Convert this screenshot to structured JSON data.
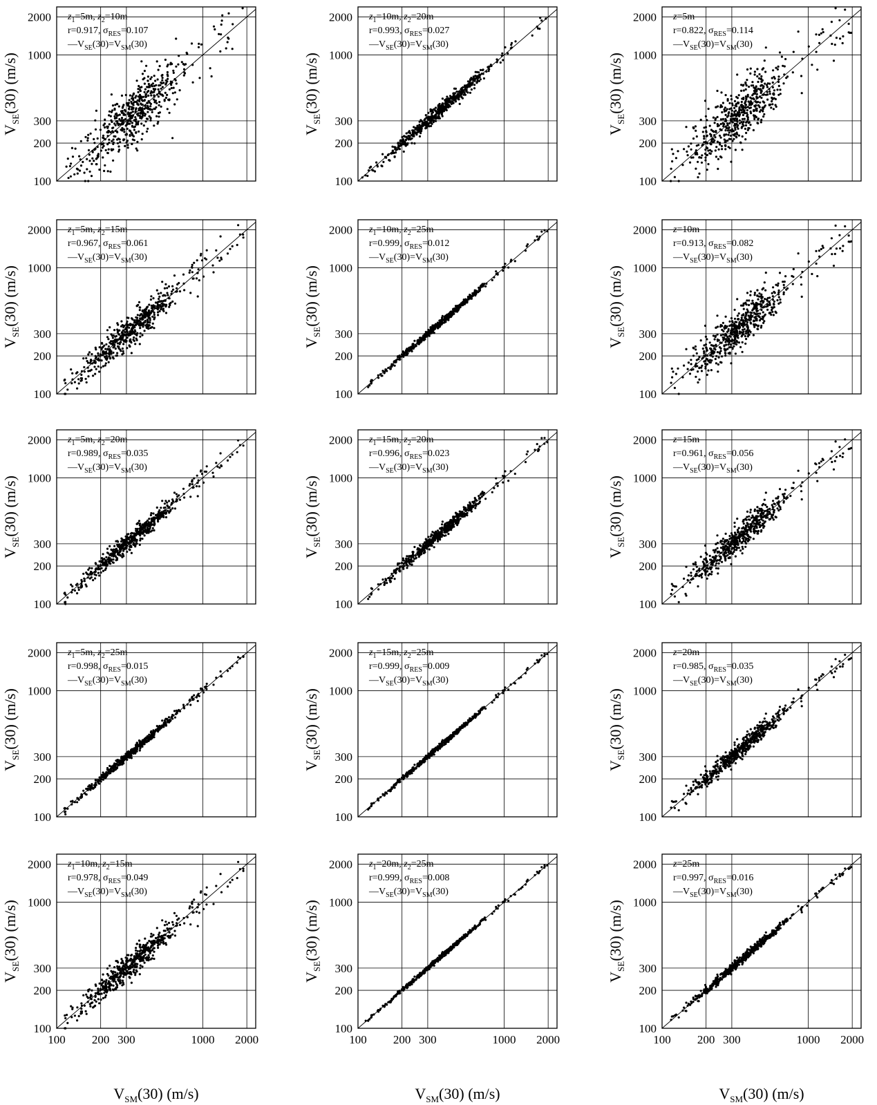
{
  "figure": {
    "ylabel_main": "V",
    "ylabel_sub": "SE",
    "ylabel_rest": "(30) (m/s)",
    "xlabel_main": "V",
    "xlabel_sub": "SM",
    "xlabel_rest": "(30) (m/s)",
    "legend_main": "—V",
    "legend_sub1": "SE",
    "legend_mid": "(30)=V",
    "legend_sub2": "SM",
    "legend_end": "(30)",
    "sigma_symbol": "σ",
    "sigma_sub": "RES"
  },
  "chart_data": [
    {
      "type": "scatter",
      "row": 0,
      "col": 0,
      "label_kind": "pair",
      "z1": "5",
      "z2": "10",
      "r": "0.917",
      "sigma": "0.107",
      "spread": 0.107,
      "xscale": "log",
      "yscale": "log",
      "xlim": [
        100,
        2300
      ],
      "ylim": [
        100,
        2400
      ],
      "xticks": [
        100,
        200,
        300,
        1000,
        2000
      ],
      "yticks": [
        100,
        200,
        300,
        1000,
        2000
      ],
      "grid": true,
      "reference_line": "y=x"
    },
    {
      "type": "scatter",
      "row": 0,
      "col": 1,
      "label_kind": "pair",
      "z1": "10",
      "z2": "20",
      "r": "0.993",
      "sigma": "0.027",
      "spread": 0.027,
      "xscale": "log",
      "yscale": "log",
      "xlim": [
        100,
        2300
      ],
      "ylim": [
        100,
        2400
      ],
      "xticks": [
        100,
        200,
        300,
        1000,
        2000
      ],
      "yticks": [
        100,
        200,
        300,
        1000,
        2000
      ],
      "grid": true,
      "reference_line": "y=x"
    },
    {
      "type": "scatter",
      "row": 0,
      "col": 2,
      "label_kind": "single",
      "z": "5",
      "r": "0.822",
      "sigma": "0.114",
      "spread": 0.114,
      "xscale": "log",
      "yscale": "log",
      "xlim": [
        100,
        2300
      ],
      "ylim": [
        100,
        2400
      ],
      "xticks": [
        100,
        200,
        300,
        1000,
        2000
      ],
      "yticks": [
        100,
        200,
        300,
        1000,
        2000
      ],
      "grid": true,
      "reference_line": "y=x"
    },
    {
      "type": "scatter",
      "row": 1,
      "col": 0,
      "label_kind": "pair",
      "z1": "5",
      "z2": "15",
      "r": "0.967",
      "sigma": "0.061",
      "spread": 0.061,
      "xscale": "log",
      "yscale": "log",
      "xlim": [
        100,
        2300
      ],
      "ylim": [
        100,
        2400
      ],
      "xticks": [
        100,
        200,
        300,
        1000,
        2000
      ],
      "yticks": [
        100,
        200,
        300,
        1000,
        2000
      ],
      "grid": true,
      "reference_line": "y=x"
    },
    {
      "type": "scatter",
      "row": 1,
      "col": 1,
      "label_kind": "pair",
      "z1": "10",
      "z2": "25",
      "r": "0.999",
      "sigma": "0.012",
      "spread": 0.012,
      "xscale": "log",
      "yscale": "log",
      "xlim": [
        100,
        2300
      ],
      "ylim": [
        100,
        2400
      ],
      "xticks": [
        100,
        200,
        300,
        1000,
        2000
      ],
      "yticks": [
        100,
        200,
        300,
        1000,
        2000
      ],
      "grid": true,
      "reference_line": "y=x"
    },
    {
      "type": "scatter",
      "row": 1,
      "col": 2,
      "label_kind": "single",
      "z": "10",
      "r": "0.913",
      "sigma": "0.082",
      "spread": 0.082,
      "xscale": "log",
      "yscale": "log",
      "xlim": [
        100,
        2300
      ],
      "ylim": [
        100,
        2400
      ],
      "xticks": [
        100,
        200,
        300,
        1000,
        2000
      ],
      "yticks": [
        100,
        200,
        300,
        1000,
        2000
      ],
      "grid": true,
      "reference_line": "y=x"
    },
    {
      "type": "scatter",
      "row": 2,
      "col": 0,
      "label_kind": "pair",
      "z1": "5",
      "z2": "20",
      "r": "0.989",
      "sigma": "0.035",
      "spread": 0.035,
      "xscale": "log",
      "yscale": "log",
      "xlim": [
        100,
        2300
      ],
      "ylim": [
        100,
        2400
      ],
      "xticks": [
        100,
        200,
        300,
        1000,
        2000
      ],
      "yticks": [
        100,
        200,
        300,
        1000,
        2000
      ],
      "grid": true,
      "reference_line": "y=x"
    },
    {
      "type": "scatter",
      "row": 2,
      "col": 1,
      "label_kind": "pair",
      "z1": "15",
      "z2": "20",
      "r": "0.996",
      "sigma": "0.023",
      "spread": 0.023,
      "xscale": "log",
      "yscale": "log",
      "xlim": [
        100,
        2300
      ],
      "ylim": [
        100,
        2400
      ],
      "xticks": [
        100,
        200,
        300,
        1000,
        2000
      ],
      "yticks": [
        100,
        200,
        300,
        1000,
        2000
      ],
      "grid": true,
      "reference_line": "y=x"
    },
    {
      "type": "scatter",
      "row": 2,
      "col": 2,
      "label_kind": "single",
      "z": "15",
      "r": "0.961",
      "sigma": "0.056",
      "spread": 0.056,
      "xscale": "log",
      "yscale": "log",
      "xlim": [
        100,
        2300
      ],
      "ylim": [
        100,
        2400
      ],
      "xticks": [
        100,
        200,
        300,
        1000,
        2000
      ],
      "yticks": [
        100,
        200,
        300,
        1000,
        2000
      ],
      "grid": true,
      "reference_line": "y=x"
    },
    {
      "type": "scatter",
      "row": 3,
      "col": 0,
      "label_kind": "pair",
      "z1": "5",
      "z2": "25",
      "r": "0.998",
      "sigma": "0.015",
      "spread": 0.015,
      "xscale": "log",
      "yscale": "log",
      "xlim": [
        100,
        2300
      ],
      "ylim": [
        100,
        2400
      ],
      "xticks": [
        100,
        200,
        300,
        1000,
        2000
      ],
      "yticks": [
        100,
        200,
        300,
        1000,
        2000
      ],
      "grid": true,
      "reference_line": "y=x"
    },
    {
      "type": "scatter",
      "row": 3,
      "col": 1,
      "label_kind": "pair",
      "z1": "15",
      "z2": "25",
      "r": "0.999",
      "sigma": "0.009",
      "spread": 0.009,
      "xscale": "log",
      "yscale": "log",
      "xlim": [
        100,
        2300
      ],
      "ylim": [
        100,
        2400
      ],
      "xticks": [
        100,
        200,
        300,
        1000,
        2000
      ],
      "yticks": [
        100,
        200,
        300,
        1000,
        2000
      ],
      "grid": true,
      "reference_line": "y=x"
    },
    {
      "type": "scatter",
      "row": 3,
      "col": 2,
      "label_kind": "single",
      "z": "20",
      "r": "0.985",
      "sigma": "0.035",
      "spread": 0.035,
      "xscale": "log",
      "yscale": "log",
      "xlim": [
        100,
        2300
      ],
      "ylim": [
        100,
        2400
      ],
      "xticks": [
        100,
        200,
        300,
        1000,
        2000
      ],
      "yticks": [
        100,
        200,
        300,
        1000,
        2000
      ],
      "grid": true,
      "reference_line": "y=x"
    },
    {
      "type": "scatter",
      "row": 4,
      "col": 0,
      "label_kind": "pair",
      "z1": "10",
      "z2": "15",
      "r": "0.978",
      "sigma": "0.049",
      "spread": 0.049,
      "xscale": "log",
      "yscale": "log",
      "xlim": [
        100,
        2300
      ],
      "ylim": [
        100,
        2400
      ],
      "xticks": [
        100,
        200,
        300,
        1000,
        2000
      ],
      "yticks": [
        100,
        200,
        300,
        1000,
        2000
      ],
      "grid": true,
      "reference_line": "y=x"
    },
    {
      "type": "scatter",
      "row": 4,
      "col": 1,
      "label_kind": "pair",
      "z1": "20",
      "z2": "25",
      "r": "0.999",
      "sigma": "0.008",
      "spread": 0.008,
      "xscale": "log",
      "yscale": "log",
      "xlim": [
        100,
        2300
      ],
      "ylim": [
        100,
        2400
      ],
      "xticks": [
        100,
        200,
        300,
        1000,
        2000
      ],
      "yticks": [
        100,
        200,
        300,
        1000,
        2000
      ],
      "grid": true,
      "reference_line": "y=x"
    },
    {
      "type": "scatter",
      "row": 4,
      "col": 2,
      "label_kind": "single",
      "z": "25",
      "r": "0.997",
      "sigma": "0.016",
      "spread": 0.016,
      "xscale": "log",
      "yscale": "log",
      "xlim": [
        100,
        2300
      ],
      "ylim": [
        100,
        2400
      ],
      "xticks": [
        100,
        200,
        300,
        1000,
        2000
      ],
      "yticks": [
        100,
        200,
        300,
        1000,
        2000
      ],
      "grid": true,
      "reference_line": "y=x"
    }
  ]
}
